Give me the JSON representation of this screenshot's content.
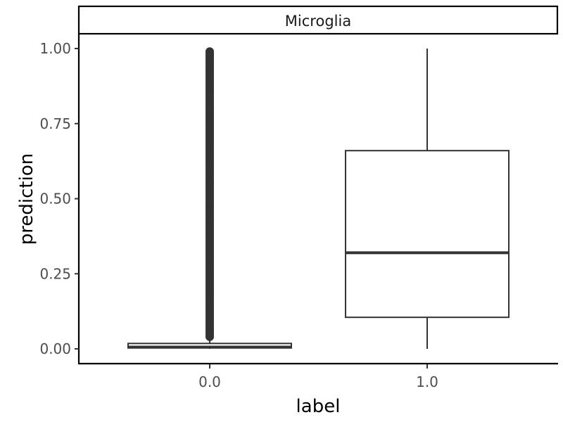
{
  "chart_data": {
    "type": "box",
    "facet_label": "Microglia",
    "xlabel": "label",
    "ylabel": "prediction",
    "categories": [
      "0.0",
      "1.0"
    ],
    "y_ticks": [
      "0.00",
      "0.25",
      "0.50",
      "0.75",
      "1.00"
    ],
    "ylim": [
      -0.05,
      1.13
    ],
    "boxes": [
      {
        "category": "0.0",
        "whisker_low": 0.0,
        "q1": 0.003,
        "median": 0.006,
        "q3": 0.018,
        "whisker_high": 0.035,
        "outlier_range": [
          0.04,
          0.99
        ]
      },
      {
        "category": "1.0",
        "whisker_low": 0.0,
        "q1": 0.105,
        "median": 0.32,
        "q3": 0.66,
        "whisker_high": 1.0
      }
    ],
    "colors": {
      "box_line": "#333333",
      "outlier": "#333333"
    }
  }
}
